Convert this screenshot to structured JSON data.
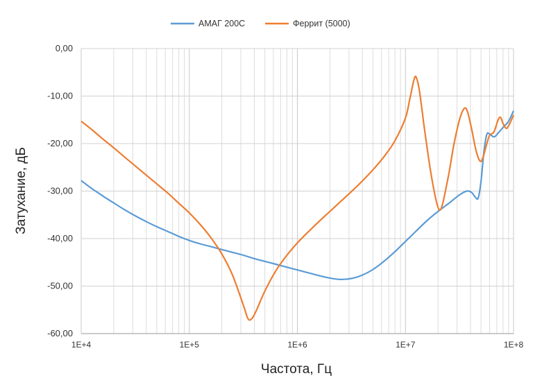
{
  "chart_data": {
    "type": "line",
    "xscale": "log",
    "xlim": [
      10000,
      100000000
    ],
    "ylim": [
      -60,
      0
    ],
    "xlabel": "Частота, Гц",
    "ylabel": "Затухание, дБ",
    "grid": true,
    "legend_position": "top",
    "x_tick_labels": [
      "1E+4",
      "1E+5",
      "1E+6",
      "1E+7",
      "1E+8"
    ],
    "y_tick_labels": [
      "0,00",
      "-10,00",
      "-20,00",
      "-30,00",
      "-40,00",
      "-50,00",
      "-60,00"
    ],
    "series": [
      {
        "name": "АМАГ 200С",
        "color": "#5b9bd5",
        "points": [
          [
            10000,
            -27.8
          ],
          [
            12600,
            -29.5
          ],
          [
            15800,
            -31.0
          ],
          [
            20000,
            -32.5
          ],
          [
            25100,
            -33.9
          ],
          [
            31600,
            -35.2
          ],
          [
            39800,
            -36.4
          ],
          [
            50100,
            -37.5
          ],
          [
            63100,
            -38.5
          ],
          [
            79400,
            -39.5
          ],
          [
            100000,
            -40.4
          ],
          [
            125900,
            -41.1
          ],
          [
            158500,
            -41.7
          ],
          [
            199500,
            -42.3
          ],
          [
            251200,
            -42.9
          ],
          [
            316200,
            -43.5
          ],
          [
            398100,
            -44.2
          ],
          [
            501200,
            -44.8
          ],
          [
            631000,
            -45.4
          ],
          [
            794300,
            -46.0
          ],
          [
            1000000,
            -46.6
          ],
          [
            1259000,
            -47.2
          ],
          [
            1585000,
            -47.8
          ],
          [
            1995000,
            -48.3
          ],
          [
            2512000,
            -48.6
          ],
          [
            3162000,
            -48.4
          ],
          [
            3981000,
            -47.7
          ],
          [
            5012000,
            -46.5
          ],
          [
            6310000,
            -44.8
          ],
          [
            7943000,
            -42.8
          ],
          [
            10000000,
            -40.6
          ],
          [
            12590000,
            -38.4
          ],
          [
            15850000,
            -36.2
          ],
          [
            19950000,
            -34.3
          ],
          [
            25120000,
            -32.6
          ],
          [
            31620000,
            -30.8
          ],
          [
            37000000,
            -30.0
          ],
          [
            41000000,
            -30.3
          ],
          [
            44000000,
            -31.2
          ],
          [
            47000000,
            -31.5
          ],
          [
            50000000,
            -28.0
          ],
          [
            53000000,
            -22.0
          ],
          [
            56500000,
            -18.1
          ],
          [
            60000000,
            -18.0
          ],
          [
            66000000,
            -18.6
          ],
          [
            72000000,
            -17.8
          ],
          [
            80000000,
            -16.6
          ],
          [
            90000000,
            -15.3
          ],
          [
            100000000,
            -13.1
          ]
        ]
      },
      {
        "name": "Феррит (5000)",
        "color": "#ed7d31",
        "points": [
          [
            10000,
            -15.3
          ],
          [
            12600,
            -17.1
          ],
          [
            15800,
            -19.0
          ],
          [
            20000,
            -20.9
          ],
          [
            25100,
            -22.8
          ],
          [
            31600,
            -24.7
          ],
          [
            39800,
            -26.6
          ],
          [
            50100,
            -28.5
          ],
          [
            63100,
            -30.4
          ],
          [
            79400,
            -32.5
          ],
          [
            100000,
            -34.6
          ],
          [
            125900,
            -37.0
          ],
          [
            158500,
            -39.8
          ],
          [
            199500,
            -43.2
          ],
          [
            251200,
            -47.7
          ],
          [
            316200,
            -54.0
          ],
          [
            350000,
            -56.9
          ],
          [
            380000,
            -56.8
          ],
          [
            420000,
            -55.0
          ],
          [
            501200,
            -51.0
          ],
          [
            631000,
            -46.8
          ],
          [
            794300,
            -43.6
          ],
          [
            1000000,
            -40.9
          ],
          [
            1259000,
            -38.6
          ],
          [
            1585000,
            -36.4
          ],
          [
            1995000,
            -34.3
          ],
          [
            2512000,
            -32.2
          ],
          [
            3162000,
            -30.1
          ],
          [
            3981000,
            -27.9
          ],
          [
            5012000,
            -25.5
          ],
          [
            6310000,
            -22.8
          ],
          [
            7943000,
            -19.5
          ],
          [
            10000000,
            -14.6
          ],
          [
            11000000,
            -10.5
          ],
          [
            12000000,
            -6.5
          ],
          [
            12600000,
            -6.1
          ],
          [
            13500000,
            -9.0
          ],
          [
            15000000,
            -17.0
          ],
          [
            17000000,
            -25.5
          ],
          [
            19000000,
            -31.5
          ],
          [
            20500000,
            -33.9
          ],
          [
            22000000,
            -32.8
          ],
          [
            25120000,
            -26.5
          ],
          [
            28000000,
            -20.3
          ],
          [
            31620000,
            -15.0
          ],
          [
            35000000,
            -12.6
          ],
          [
            37500000,
            -13.3
          ],
          [
            41000000,
            -17.0
          ],
          [
            45000000,
            -21.5
          ],
          [
            49000000,
            -23.7
          ],
          [
            52000000,
            -23.0
          ],
          [
            56000000,
            -20.4
          ],
          [
            60000000,
            -18.3
          ],
          [
            66000000,
            -17.5
          ],
          [
            72000000,
            -15.0
          ],
          [
            76000000,
            -14.5
          ],
          [
            80000000,
            -15.8
          ],
          [
            86000000,
            -16.8
          ],
          [
            92000000,
            -15.8
          ],
          [
            100000000,
            -14.0
          ]
        ]
      }
    ]
  }
}
